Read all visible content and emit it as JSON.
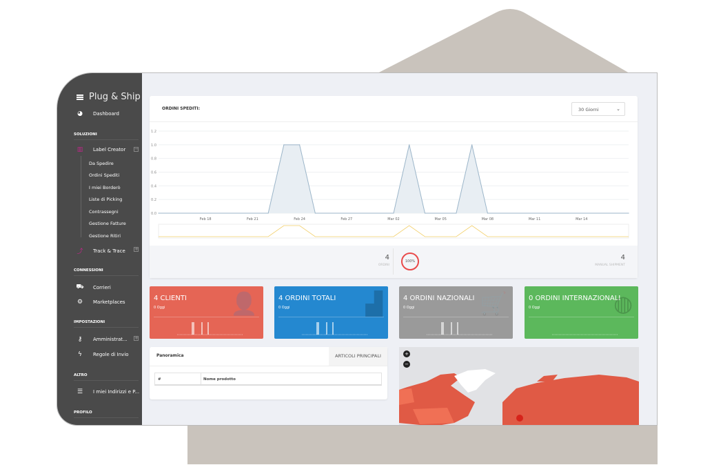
{
  "brand": "Plug & Ship",
  "sidebar": {
    "dashboard": "Dashboard",
    "sections": [
      "SOLUZIONI",
      "CONNESSIONI",
      "IMPOSTAZIONI",
      "ALTRO",
      "PROFILO"
    ],
    "label_creator": "Label Creator",
    "sub_items": [
      "Da Spedire",
      "Ordini Spediti",
      "I miei Borderò",
      "Liste di Picking",
      "Contrassegni",
      "Gestione Fatture",
      "Gestione Ritiri"
    ],
    "track": "Track & Trace",
    "corrieri": "Corrieri",
    "marketplaces": "Marketplaces",
    "admin": "Amministrat...",
    "regole": "Regole di Invio",
    "indirizzi": "I miei Indirizzi e P..."
  },
  "orders_card": {
    "title": "ORDINI SPEDITI:",
    "period": "30 Giorni",
    "ordini_value": "4",
    "ordini_label": "ORDINI",
    "percent": "100%",
    "manual_value": "4",
    "manual_label": "MANUAL SHIPMENT"
  },
  "chart_data": {
    "type": "area",
    "title": "",
    "x_ticks": [
      "Feb 18",
      "Feb 21",
      "Feb 24",
      "Feb 27",
      "Mar 02",
      "Mar 05",
      "Mar 08",
      "Mar 11",
      "Mar 14"
    ],
    "y_ticks": [
      "0.0",
      "0.2",
      "0.4",
      "0.6",
      "0.8",
      "1.0",
      "1.2"
    ],
    "ylim": [
      0,
      1.2
    ],
    "xlim": [
      "2025-02-15",
      "2025-03-17"
    ],
    "points": [
      [
        "2025-02-15",
        0
      ],
      [
        "2025-02-22",
        0
      ],
      [
        "2025-02-23",
        1
      ],
      [
        "2025-02-24",
        1
      ],
      [
        "2025-02-25",
        0
      ],
      [
        "2025-03-02",
        0
      ],
      [
        "2025-03-03",
        1
      ],
      [
        "2025-03-04",
        0
      ],
      [
        "2025-03-06",
        0
      ],
      [
        "2025-03-07",
        1
      ],
      [
        "2025-03-08",
        0
      ],
      [
        "2025-03-17",
        0
      ]
    ],
    "grid": true,
    "line_color": "#9bb5c9",
    "navigator_color": "#f2cf6a"
  },
  "stats": [
    {
      "title": "4 CLIENTI",
      "sub": "0 Oggi",
      "color": "#e56555",
      "icon": "user-icon"
    },
    {
      "title": "4 ORDINI TOTALI",
      "sub": "0 Oggi",
      "color": "#2488d0",
      "icon": "bar-chart-icon"
    },
    {
      "title": "4 ORDINI NAZIONALI",
      "sub": "0 Oggi",
      "color": "#9a9a9a",
      "icon": "cart-icon"
    },
    {
      "title": "0 ORDINI INTERNAZIONALI",
      "sub": "0 Oggi",
      "color": "#5cb85c",
      "icon": "globe-icon"
    }
  ],
  "panoramica": {
    "title": "Panoramica",
    "tab": "ARTICOLI PRINCIPALI",
    "columns": [
      "#",
      "Nome prodotto"
    ]
  },
  "map": {
    "zoom_in": "+",
    "zoom_out": "−",
    "land_color": "#e05a45"
  }
}
